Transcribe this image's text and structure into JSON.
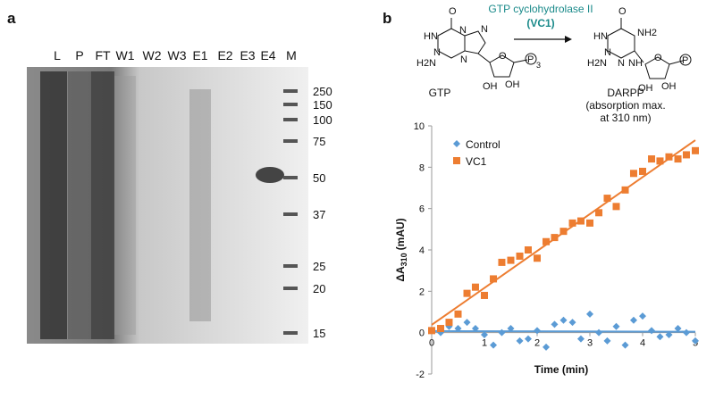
{
  "panel_a": {
    "label": "a",
    "lanes": [
      "L",
      "P",
      "FT",
      "W1",
      "W2",
      "W3",
      "E1",
      "E2",
      "E3",
      "E4",
      "M"
    ],
    "markers": [
      "250",
      "150",
      "100",
      "75",
      "50",
      "37",
      "25",
      "20",
      "15"
    ]
  },
  "panel_b": {
    "label": "b",
    "scheme": {
      "enzyme": "GTP cyclohydrolase II",
      "enzyme_short": "(VC1)",
      "substrate": "GTP",
      "product": "DARPP",
      "product_note": [
        "(absorption max.",
        "at 310 nm)"
      ],
      "gtp_atoms": [
        "O",
        "N",
        "N",
        "HN",
        "N",
        "H2N",
        "N",
        "O",
        "OH",
        "OH",
        "P",
        "3"
      ],
      "darpp_atoms": [
        "O",
        "HN",
        "NH2",
        "N",
        "H2N",
        "N",
        "NH",
        "O",
        "OH",
        "OH",
        "P"
      ]
    }
  },
  "chart_data": {
    "type": "scatter",
    "x_label": "Time (min)",
    "y_label": {
      "main": "ΔA",
      "sub": "310",
      "unit": "(mAU)"
    },
    "xlim": [
      0,
      5
    ],
    "ylim": [
      -2,
      10
    ],
    "xticks": [
      0,
      1,
      2,
      3,
      4,
      5
    ],
    "yticks": [
      -2,
      0,
      2,
      4,
      6,
      8,
      10
    ],
    "trendline": true,
    "legend": "upper left",
    "x": [
      0,
      0.17,
      0.33,
      0.5,
      0.67,
      0.83,
      1,
      1.17,
      1.33,
      1.5,
      1.67,
      1.83,
      2,
      2.17,
      2.33,
      2.5,
      2.67,
      2.83,
      3,
      3.17,
      3.33,
      3.5,
      3.67,
      3.83,
      4,
      4.17,
      4.33,
      4.5,
      4.67,
      4.83,
      5
    ],
    "series": [
      {
        "name": "Control",
        "color": "#5b9bd5",
        "marker": "diamond",
        "values": [
          0.1,
          0,
          0.3,
          0.2,
          0.5,
          0.2,
          -0.1,
          -0.6,
          0,
          0.2,
          -0.4,
          -0.3,
          0.1,
          -0.7,
          0.4,
          0.6,
          0.5,
          -0.3,
          0.9,
          0,
          -0.4,
          0.3,
          -0.6,
          0.6,
          0.8,
          0.1,
          -0.2,
          -0.1,
          0.2,
          0,
          -0.4
        ]
      },
      {
        "name": "VC1",
        "color": "#ed7d31",
        "marker": "square",
        "values": [
          0.1,
          0.2,
          0.5,
          0.9,
          1.9,
          2.2,
          1.8,
          2.6,
          3.4,
          3.5,
          3.7,
          4,
          3.6,
          4.4,
          4.6,
          4.9,
          5.3,
          5.4,
          5.3,
          5.8,
          6.5,
          6.1,
          6.9,
          7.7,
          7.8,
          8.4,
          8.3,
          8.5,
          8.4,
          8.6,
          8.8
        ]
      }
    ]
  }
}
